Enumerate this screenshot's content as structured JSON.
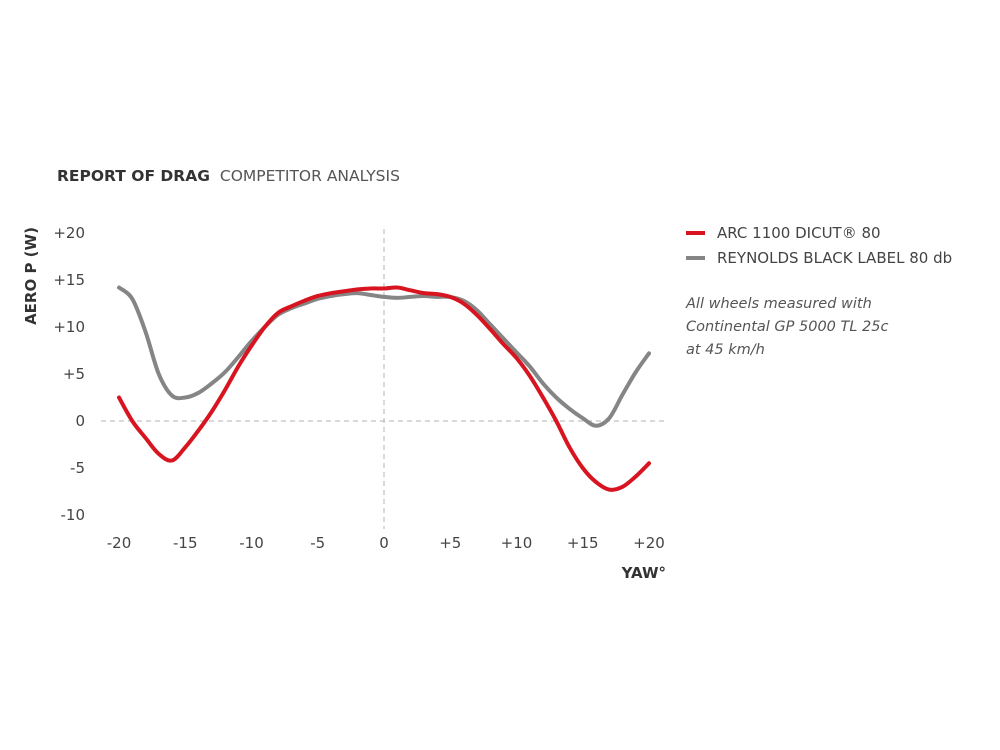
{
  "chart_data": {
    "type": "line",
    "title": {
      "bold": "REPORT OF DRAG",
      "regular": "COMPETITOR ANALYSIS"
    },
    "xlabel": "YAW°",
    "ylabel": "AERO P (W)",
    "xlim": [
      -20,
      20
    ],
    "ylim": [
      -10,
      20
    ],
    "x_ticks": [
      {
        "value": -20,
        "label": "-20"
      },
      {
        "value": -15,
        "label": "-15"
      },
      {
        "value": -10,
        "label": "-10"
      },
      {
        "value": -5,
        "label": "-5"
      },
      {
        "value": 0,
        "label": "0"
      },
      {
        "value": 5,
        "label": "+5"
      },
      {
        "value": 10,
        "label": "+10"
      },
      {
        "value": 15,
        "label": "+15"
      },
      {
        "value": 20,
        "label": "+20"
      }
    ],
    "y_ticks": [
      {
        "value": 20,
        "label": "+20"
      },
      {
        "value": 15,
        "label": "+15"
      },
      {
        "value": 10,
        "label": "+10"
      },
      {
        "value": 5,
        "label": "+5"
      },
      {
        "value": 0,
        "label": "0"
      },
      {
        "value": -5,
        "label": "-5"
      },
      {
        "value": -10,
        "label": "-10"
      }
    ],
    "grid": "dashed reference lines at x=0 and y=0",
    "legend_position": "right",
    "series": [
      {
        "name": "ARC 1100 DICUT® 80",
        "color": "#d7141f",
        "points": [
          [
            -20,
            2.5
          ],
          [
            -19,
            0
          ],
          [
            -18,
            -1.8
          ],
          [
            -17,
            -3.5
          ],
          [
            -16,
            -4.2
          ],
          [
            -15,
            -2.8
          ],
          [
            -14,
            -1.0
          ],
          [
            -13,
            1.0
          ],
          [
            -12,
            3.3
          ],
          [
            -11,
            5.8
          ],
          [
            -10,
            8.0
          ],
          [
            -9,
            10.0
          ],
          [
            -8,
            11.5
          ],
          [
            -7,
            12.2
          ],
          [
            -6,
            12.8
          ],
          [
            -5,
            13.3
          ],
          [
            -4,
            13.6
          ],
          [
            -3,
            13.8
          ],
          [
            -2,
            14.0
          ],
          [
            -1,
            14.1
          ],
          [
            0,
            14.1
          ],
          [
            1,
            14.2
          ],
          [
            2,
            13.9
          ],
          [
            3,
            13.6
          ],
          [
            4,
            13.5
          ],
          [
            5,
            13.2
          ],
          [
            6,
            12.5
          ],
          [
            7,
            11.3
          ],
          [
            8,
            9.8
          ],
          [
            9,
            8.2
          ],
          [
            10,
            6.7
          ],
          [
            11,
            4.8
          ],
          [
            12,
            2.5
          ],
          [
            13,
            0
          ],
          [
            14,
            -2.8
          ],
          [
            15,
            -5.0
          ],
          [
            16,
            -6.5
          ],
          [
            17,
            -7.3
          ],
          [
            18,
            -7.0
          ],
          [
            19,
            -5.9
          ],
          [
            20,
            -4.5
          ]
        ]
      },
      {
        "name": "REYNOLDS BLACK LABEL 80 db",
        "color": "#858585",
        "points": [
          [
            -20,
            14.2
          ],
          [
            -19,
            13.0
          ],
          [
            -18,
            9.5
          ],
          [
            -17,
            5.0
          ],
          [
            -16,
            2.7
          ],
          [
            -15,
            2.5
          ],
          [
            -14,
            3.0
          ],
          [
            -13,
            4.0
          ],
          [
            -12,
            5.2
          ],
          [
            -11,
            6.8
          ],
          [
            -10,
            8.5
          ],
          [
            -9,
            10.0
          ],
          [
            -8,
            11.3
          ],
          [
            -7,
            12.0
          ],
          [
            -6,
            12.5
          ],
          [
            -5,
            13.0
          ],
          [
            -4,
            13.3
          ],
          [
            -3,
            13.5
          ],
          [
            -2,
            13.6
          ],
          [
            -1,
            13.4
          ],
          [
            0,
            13.2
          ],
          [
            1,
            13.1
          ],
          [
            2,
            13.2
          ],
          [
            3,
            13.3
          ],
          [
            4,
            13.2
          ],
          [
            5,
            13.2
          ],
          [
            6,
            12.8
          ],
          [
            7,
            11.8
          ],
          [
            8,
            10.3
          ],
          [
            9,
            8.8
          ],
          [
            10,
            7.3
          ],
          [
            11,
            5.8
          ],
          [
            12,
            4.0
          ],
          [
            13,
            2.5
          ],
          [
            14,
            1.3
          ],
          [
            15,
            0.3
          ],
          [
            16,
            -0.5
          ],
          [
            17,
            0.3
          ],
          [
            18,
            2.8
          ],
          [
            19,
            5.2
          ],
          [
            20,
            7.2
          ]
        ]
      }
    ],
    "annotation": [
      "All wheels measured with",
      "Continental GP 5000 TL 25c",
      "at 45 km/h"
    ]
  }
}
